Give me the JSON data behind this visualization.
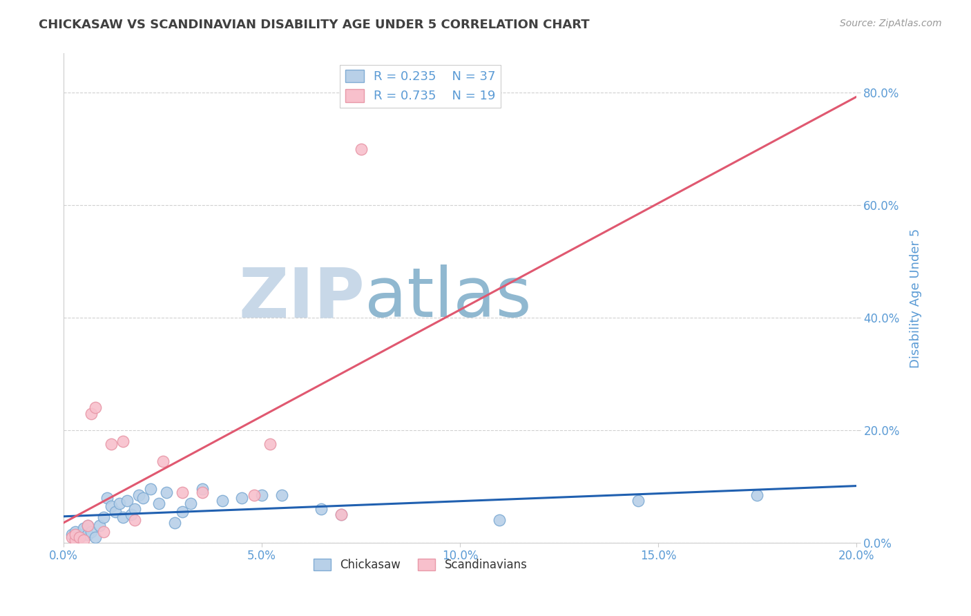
{
  "title": "CHICKASAW VS SCANDINAVIAN DISABILITY AGE UNDER 5 CORRELATION CHART",
  "source": "Source: ZipAtlas.com",
  "ylabel": "Disability Age Under 5",
  "x_ticklabels": [
    "0.0%",
    "5.0%",
    "10.0%",
    "15.0%",
    "20.0%"
  ],
  "x_ticks": [
    0,
    5,
    10,
    15,
    20
  ],
  "y_ticklabels": [
    "0.0%",
    "20.0%",
    "40.0%",
    "60.0%",
    "80.0%"
  ],
  "y_ticks": [
    0,
    20,
    40,
    60,
    80
  ],
  "xlim": [
    0,
    20
  ],
  "ylim": [
    0,
    87
  ],
  "legend_entries": [
    {
      "label": "Chickasaw",
      "R": "0.235",
      "N": "37",
      "color": "#a8c4e0"
    },
    {
      "label": "Scandinavians",
      "R": "0.735",
      "N": "19",
      "color": "#f4a8b8"
    }
  ],
  "chickasaw_x": [
    0.2,
    0.3,
    0.4,
    0.5,
    0.5,
    0.6,
    0.6,
    0.7,
    0.8,
    0.9,
    1.0,
    1.1,
    1.2,
    1.3,
    1.4,
    1.5,
    1.6,
    1.7,
    1.8,
    1.9,
    2.0,
    2.2,
    2.4,
    2.6,
    2.8,
    3.0,
    3.2,
    3.5,
    4.0,
    4.5,
    5.0,
    5.5,
    6.5,
    7.0,
    11.0,
    14.5,
    17.5
  ],
  "chickasaw_y": [
    1.5,
    2.0,
    1.0,
    1.5,
    2.5,
    3.0,
    1.5,
    2.0,
    1.0,
    3.0,
    4.5,
    8.0,
    6.5,
    5.5,
    7.0,
    4.5,
    7.5,
    5.0,
    6.0,
    8.5,
    8.0,
    9.5,
    7.0,
    9.0,
    3.5,
    5.5,
    7.0,
    9.5,
    7.5,
    8.0,
    8.5,
    8.5,
    6.0,
    5.0,
    4.0,
    7.5,
    8.5
  ],
  "scandinavian_x": [
    0.2,
    0.3,
    0.3,
    0.4,
    0.5,
    0.6,
    0.7,
    0.8,
    1.0,
    1.2,
    1.5,
    1.8,
    2.5,
    3.0,
    3.5,
    4.8,
    5.2,
    7.5,
    7.0
  ],
  "scandinavian_y": [
    1.0,
    0.5,
    1.5,
    1.0,
    0.5,
    3.0,
    23.0,
    24.0,
    2.0,
    17.5,
    18.0,
    4.0,
    14.5,
    9.0,
    9.0,
    8.5,
    17.5,
    70.0,
    5.0
  ],
  "watermark_zip": "ZIP",
  "watermark_atlas": "atlas",
  "watermark_color_zip": "#c8d8e8",
  "watermark_color_atlas": "#90b8d0",
  "title_color": "#404040",
  "axis_label_color": "#5b9bd5",
  "tick_color": "#5b9bd5",
  "grid_color": "#d0d0d0",
  "chickasaw_marker_color": "#b8d0e8",
  "chickasaw_edge_color": "#80acd4",
  "scandinavian_marker_color": "#f8c0cc",
  "scandinavian_edge_color": "#e898a8",
  "trendline_chickasaw_color": "#2060b0",
  "trendline_chickasaw_dash_color": "#c0c8d0",
  "trendline_scandinavian_color": "#e05870"
}
